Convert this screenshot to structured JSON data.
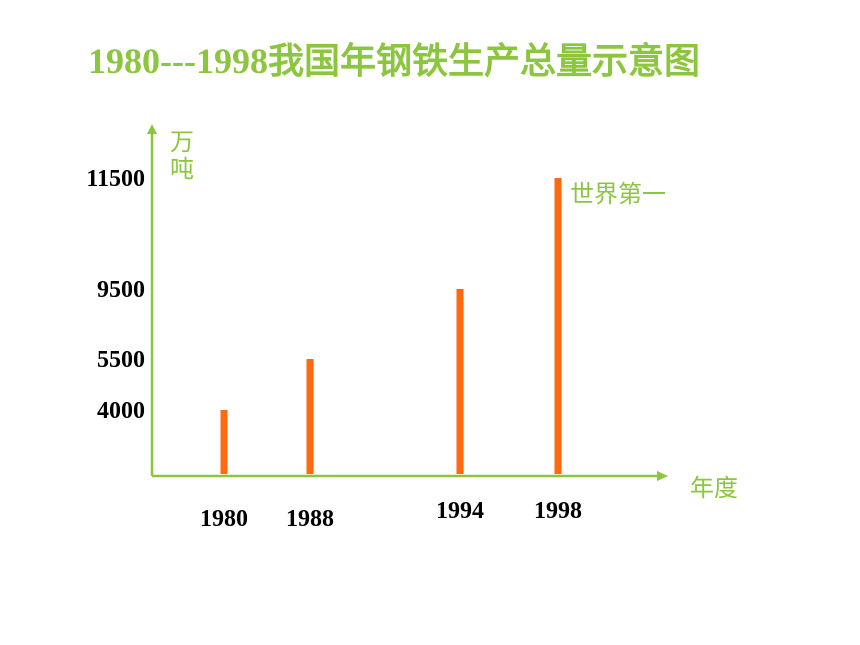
{
  "title": "1980---1998我国年钢铁生产总量示意图",
  "colors": {
    "title": "#8cc63e",
    "axis": "#8cc63e",
    "axis_text": "#8cc63e",
    "bar": "#ff6a10",
    "tick_text": "#000000"
  },
  "chart_data": {
    "type": "bar",
    "categories": [
      "1980",
      "1988",
      "1994",
      "1998"
    ],
    "values": [
      4000,
      5500,
      9500,
      11500
    ],
    "title": "1980---1998我国年钢铁生产总量示意图",
    "xlabel": "年度",
    "ylabel": "万吨",
    "yticks": [
      "11500",
      "9500",
      "5500",
      "4000"
    ],
    "annotations": [
      "世界第一"
    ],
    "grid": false,
    "legend": "none"
  }
}
